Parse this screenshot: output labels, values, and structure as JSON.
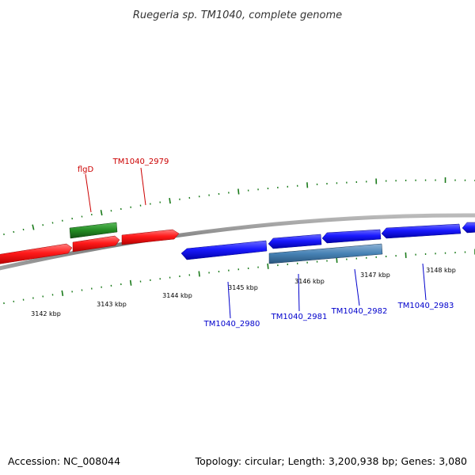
{
  "title": "Ruegeria sp. TM1040, complete genome",
  "accession": "Accession: NC_008044",
  "summary": "Topology: circular; Length: 3,200,938 bp; Genes: 3,080",
  "colors": {
    "forward_cds": "#ff0000",
    "reverse_cds": "#0000ff",
    "forward_rna_or_feature": "#228b22",
    "reverse_feature": "#4682b4",
    "backbone": "#888888",
    "tick": "#1a7a1a",
    "forward_label": "#cc0000",
    "reverse_label": "#0000cc"
  },
  "kbp_labels": [
    "3142 kbp",
    "3143 kbp",
    "3144 kbp",
    "3145 kbp",
    "3146 kbp",
    "3147 kbp",
    "3148 kbp"
  ],
  "forward_labels": [
    "flgD",
    "TM1040_2979"
  ],
  "reverse_labels": [
    "TM1040_2980",
    "TM1040_2981",
    "TM1040_2982",
    "TM1040_2983"
  ]
}
